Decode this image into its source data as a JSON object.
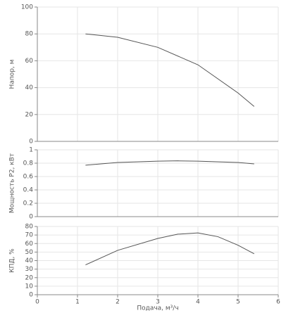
{
  "chart_data": [
    {
      "type": "line",
      "ylabel": "Напор, м",
      "x": [
        1.2,
        2,
        3,
        4,
        5,
        5.4
      ],
      "values": [
        80,
        77.5,
        70,
        57,
        36,
        26
      ],
      "color": "#555555",
      "xlim": [
        0,
        6
      ],
      "xticks": [
        0,
        1,
        2,
        3,
        4,
        5,
        6
      ],
      "ylim": [
        0,
        100
      ],
      "yticks": [
        0,
        20,
        40,
        60,
        80,
        100
      ],
      "grid": true
    },
    {
      "type": "line",
      "ylabel": "Мощность P2, кВт",
      "x": [
        1.2,
        2,
        3,
        3.5,
        4,
        5,
        5.4
      ],
      "values": [
        0.77,
        0.81,
        0.83,
        0.835,
        0.83,
        0.81,
        0.79
      ],
      "color": "#555555",
      "xlim": [
        0,
        6
      ],
      "xticks": [
        0,
        1,
        2,
        3,
        4,
        5,
        6
      ],
      "ylim": [
        0,
        1
      ],
      "yticks": [
        0,
        0.2,
        0.4,
        0.6,
        0.8,
        1
      ],
      "grid": true
    },
    {
      "type": "line",
      "ylabel": "КПД, %",
      "xlabel": "Подача, м³/ч",
      "x": [
        1.2,
        2,
        3,
        3.5,
        4,
        4.5,
        5,
        5.4
      ],
      "values": [
        35,
        52,
        66,
        71,
        72.5,
        68,
        58,
        48
      ],
      "color": "#555555",
      "xlim": [
        0,
        6
      ],
      "xticks": [
        0,
        1,
        2,
        3,
        4,
        5,
        6
      ],
      "ylim": [
        0,
        80
      ],
      "yticks": [
        0,
        10,
        20,
        30,
        40,
        50,
        60,
        70,
        80
      ],
      "grid": true
    }
  ]
}
